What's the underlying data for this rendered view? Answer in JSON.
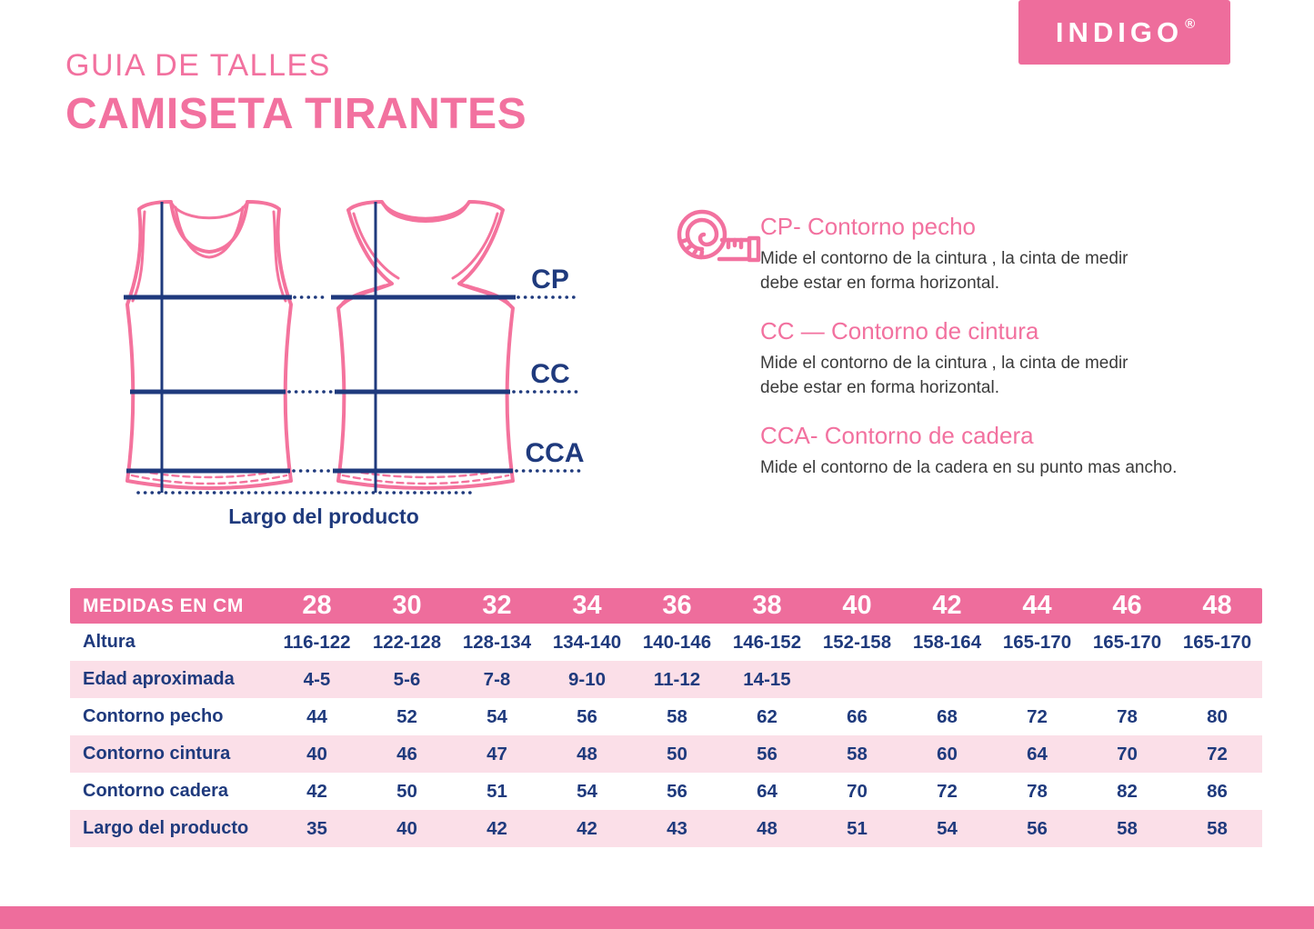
{
  "header": {
    "title_line1": "GUIA DE TALLES",
    "title_line2": "CAMISETA TIRANTES"
  },
  "brand": {
    "name": "INDIGO",
    "registered_mark": "®"
  },
  "colors": {
    "pink": "#EE6D9C",
    "pink_title": "#F2719F",
    "pink_light": "#FBDFE8",
    "navy": "#1F3A7D",
    "text_dark": "#3B3B3B"
  },
  "icons": {
    "legend_icon": "measuring-tape"
  },
  "diagram": {
    "labels": {
      "cp": "CP",
      "cc": "CC",
      "cca": "CCA",
      "length": "Largo del producto"
    }
  },
  "measurements": [
    {
      "heading": "CP- Contorno pecho",
      "description_lines": [
        "Mide el contorno de la cintura , la cinta de medir",
        "debe estar en forma horizontal."
      ]
    },
    {
      "heading": "CC — Contorno de cintura",
      "description_lines": [
        "Mide el contorno de la cintura , la cinta de medir",
        "debe estar en forma horizontal."
      ]
    },
    {
      "heading": "CCA- Contorno de cadera",
      "description_lines": [
        "Mide el contorno de la cadera en su punto mas ancho."
      ]
    }
  ],
  "size_table": {
    "header_label": "MEDIDAS EN CM",
    "sizes": [
      "28",
      "30",
      "32",
      "34",
      "36",
      "38",
      "40",
      "42",
      "44",
      "46",
      "48"
    ],
    "rows": [
      {
        "label": "Altura",
        "values": [
          "116-122",
          "122-128",
          "128-134",
          "134-140",
          "140-146",
          "146-152",
          "152-158",
          "158-164",
          "165-170",
          "165-170",
          "165-170"
        ]
      },
      {
        "label": "Edad aproximada",
        "values": [
          "4-5",
          "5-6",
          "7-8",
          "9-10",
          "11-12",
          "14-15",
          "",
          "",
          "",
          "",
          ""
        ]
      },
      {
        "label": "Contorno pecho",
        "values": [
          "44",
          "52",
          "54",
          "56",
          "58",
          "62",
          "66",
          "68",
          "72",
          "78",
          "80"
        ]
      },
      {
        "label": "Contorno cintura",
        "values": [
          "40",
          "46",
          "47",
          "48",
          "50",
          "56",
          "58",
          "60",
          "64",
          "70",
          "72"
        ]
      },
      {
        "label": "Contorno cadera",
        "values": [
          "42",
          "50",
          "51",
          "54",
          "56",
          "64",
          "70",
          "72",
          "78",
          "82",
          "86"
        ]
      },
      {
        "label": "Largo del producto",
        "values": [
          "35",
          "40",
          "42",
          "42",
          "43",
          "48",
          "51",
          "54",
          "56",
          "58",
          "58"
        ]
      }
    ]
  }
}
